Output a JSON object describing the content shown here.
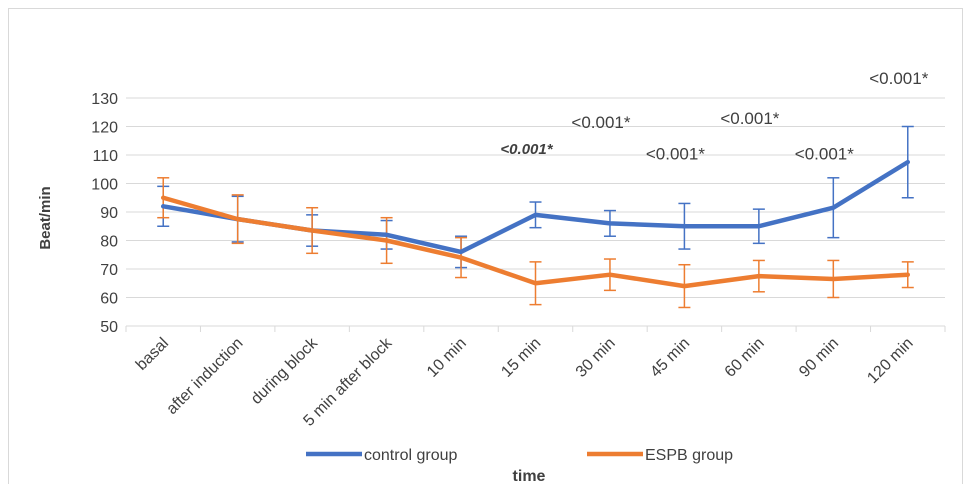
{
  "chart_data": {
    "type": "line",
    "title": "",
    "xlabel": "time",
    "ylabel": "Beat/min",
    "ylim": [
      50,
      130
    ],
    "yticks": [
      50,
      60,
      70,
      80,
      90,
      100,
      110,
      120,
      130
    ],
    "grid": true,
    "legend_position": "bottom",
    "categories": [
      "basal",
      "after induction",
      "during block",
      "5 min after block",
      "10 min",
      "15 min",
      "30 min",
      "45 min",
      "60 min",
      "90 min",
      "120 min"
    ],
    "series": [
      {
        "name": "control group",
        "color": "#4472C4",
        "values": [
          92,
          87.5,
          83.5,
          82,
          76,
          89,
          86,
          85,
          85,
          91.5,
          107.5
        ],
        "error": [
          7,
          8,
          5.5,
          5,
          5.5,
          4.5,
          4.5,
          8,
          6,
          10.5,
          12.5
        ]
      },
      {
        "name": "ESPB group",
        "color": "#ED7D31",
        "values": [
          95,
          87.5,
          83.5,
          80,
          74,
          65,
          68,
          64,
          67.5,
          66.5,
          68
        ],
        "error": [
          7,
          8.5,
          8,
          8,
          7,
          7.5,
          5.5,
          7.5,
          5.5,
          6.5,
          4.5
        ]
      }
    ],
    "annotations": [
      {
        "text": "<0.001*",
        "category": "15 min",
        "value": 112.5,
        "italic": true,
        "bold": true
      },
      {
        "text": "<0.001*",
        "category": "30 min",
        "value": 121.5,
        "italic": false,
        "bold": false
      },
      {
        "text": "<0.001*",
        "category": "45 min",
        "value": 110.5,
        "italic": false,
        "bold": false
      },
      {
        "text": "<0.001*",
        "category": "60 min",
        "value": 123,
        "italic": false,
        "bold": false
      },
      {
        "text": "<0.001*",
        "category": "90 min",
        "value": 110.5,
        "italic": false,
        "bold": false
      },
      {
        "text": "<0.001*",
        "category": "120 min",
        "value": 137,
        "italic": false,
        "bold": false
      }
    ]
  }
}
